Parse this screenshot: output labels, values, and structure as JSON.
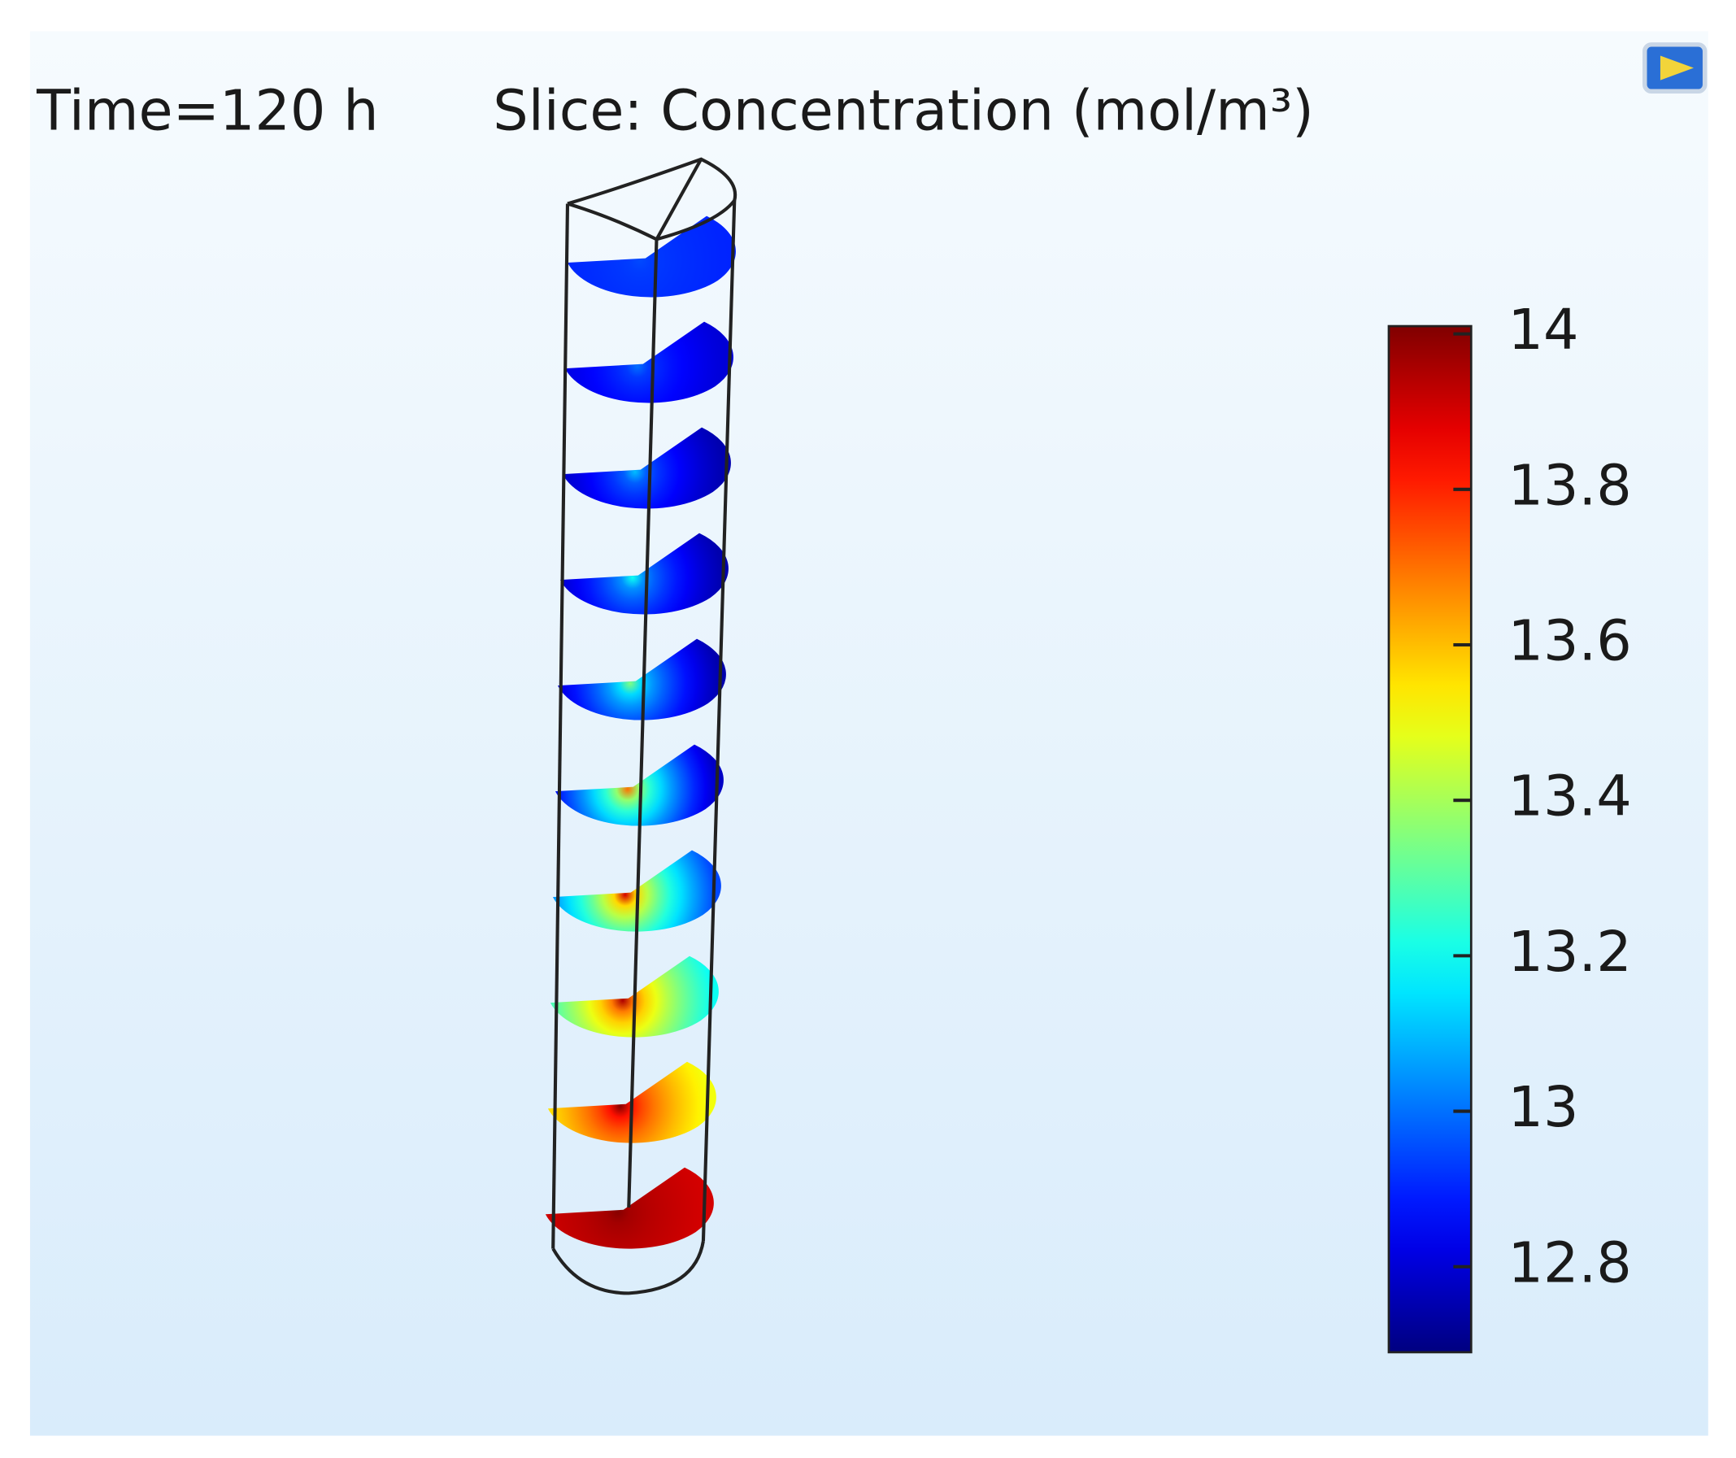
{
  "chart_data": {
    "type": "slice",
    "time_label": "Time=120 h",
    "title": "Slice: Concentration (mol/m³)",
    "colormap": "jet",
    "clim": [
      12.69,
      14.01
    ],
    "cticks": [
      {
        "value": 14,
        "label": "14"
      },
      {
        "value": 13.8,
        "label": "13.8"
      },
      {
        "value": 13.6,
        "label": "13.6"
      },
      {
        "value": 13.4,
        "label": "13.4"
      },
      {
        "value": 13.2,
        "label": "13.2"
      },
      {
        "value": 13,
        "label": "13"
      },
      {
        "value": 12.8,
        "label": "12.8"
      }
    ],
    "center_values": [
      12.95,
      13.0,
      13.1,
      13.2,
      13.35,
      13.7,
      13.9,
      13.95,
      14.0,
      14.0
    ],
    "edge_values": [
      12.9,
      12.8,
      12.75,
      12.75,
      12.75,
      12.78,
      12.95,
      13.2,
      13.5,
      13.9
    ]
  }
}
